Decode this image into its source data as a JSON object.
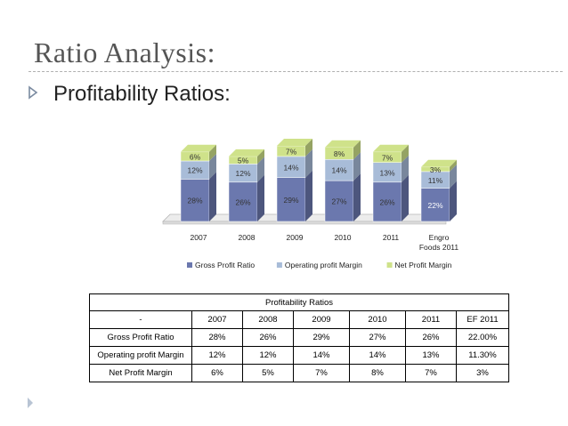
{
  "slide": {
    "title": "Ratio Analysis:",
    "bullet": "Profitability Ratios:"
  },
  "colors": {
    "gross": "#6b78ae",
    "operating": "#a8bcd8",
    "net": "#cfe28a",
    "title": "#555555"
  },
  "chart_data": {
    "type": "bar",
    "stacked": true,
    "categories": [
      "2007",
      "2008",
      "2009",
      "2010",
      "2011",
      "Engro Foods 2011"
    ],
    "series": [
      {
        "name": "Gross Profit Ratio",
        "values": [
          28,
          26,
          29,
          27,
          26,
          22
        ],
        "labels": [
          "28%",
          "26%",
          "29%",
          "27%",
          "26%",
          "22%"
        ]
      },
      {
        "name": "Operating profit Margin",
        "values": [
          12,
          12,
          14,
          14,
          13,
          11
        ],
        "labels": [
          "12%",
          "12%",
          "14%",
          "14%",
          "13%",
          "11%"
        ]
      },
      {
        "name": "Net Profit Margin",
        "values": [
          6,
          5,
          7,
          8,
          7,
          3
        ],
        "labels": [
          "6%",
          "5%",
          "7%",
          "8%",
          "7%",
          "3%"
        ]
      }
    ],
    "legend": "bottom",
    "grid": false
  },
  "table": {
    "caption": "Profitability  Ratios",
    "corner": "-",
    "headers": [
      "2007",
      "2008",
      "2009",
      "2010",
      "2011",
      "EF 2011"
    ],
    "rows": [
      {
        "label": "Gross Profit Ratio",
        "values": [
          "28%",
          "26%",
          "29%",
          "27%",
          "26%",
          "22.00%"
        ]
      },
      {
        "label": "Operating profit Margin",
        "values": [
          "12%",
          "12%",
          "14%",
          "14%",
          "13%",
          "11.30%"
        ]
      },
      {
        "label": "Net Profit Margin",
        "values": [
          "6%",
          "5%",
          "7%",
          "8%",
          "7%",
          "3%"
        ]
      }
    ]
  }
}
